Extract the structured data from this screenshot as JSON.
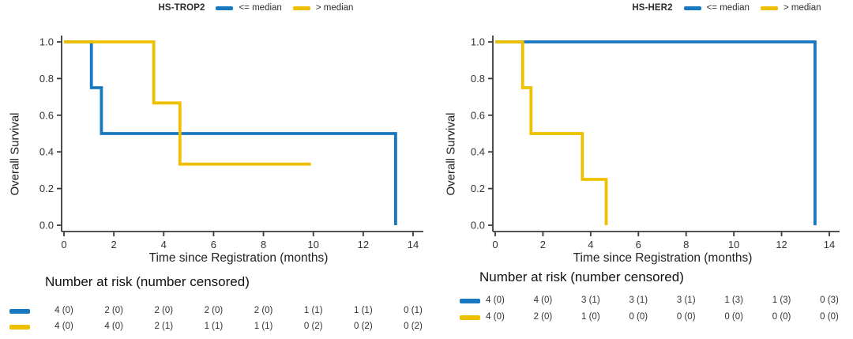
{
  "chart_data": [
    {
      "type": "line",
      "subtype": "kaplan-meier-step",
      "title": "HS-TROP2",
      "xlabel": "Time since Registration (months)",
      "ylabel": "Overall Survival",
      "xlim": [
        0,
        14
      ],
      "ylim": [
        0.0,
        1.0
      ],
      "xticks": [
        "0",
        "2",
        "4",
        "6",
        "8",
        "10",
        "12",
        "14"
      ],
      "yticks": [
        "1.0",
        "0.8",
        "0.6",
        "0.4",
        "0.2",
        "0.0"
      ],
      "ytick_values": [
        1.0,
        0.8,
        0.6,
        0.4,
        0.2,
        0.0
      ],
      "xtick_values": [
        0,
        2,
        4,
        6,
        8,
        10,
        12,
        14
      ],
      "grid": false,
      "legend_position": "top",
      "series": [
        {
          "name": "<= median",
          "color": "#1878C0",
          "points": [
            [
              0,
              1.0
            ],
            [
              1.1,
              1.0
            ],
            [
              1.1,
              0.75
            ],
            [
              1.5,
              0.75
            ],
            [
              1.5,
              0.5
            ],
            [
              13.3,
              0.5
            ],
            [
              13.3,
              0.0
            ]
          ]
        },
        {
          "name": "> median",
          "color": "#EFC000",
          "points": [
            [
              0,
              1.0
            ],
            [
              3.6,
              1.0
            ],
            [
              3.6,
              0.667
            ],
            [
              4.65,
              0.667
            ],
            [
              4.65,
              0.333
            ],
            [
              9.9,
              0.333
            ]
          ]
        }
      ],
      "risk_table": {
        "title": "Number at risk (number censored)",
        "times": [
          0,
          2,
          4,
          6,
          8,
          10,
          12,
          14
        ],
        "rows": [
          {
            "name": "<= median",
            "color": "#1878C0",
            "values": [
              "4 (0)",
              "2 (0)",
              "2 (0)",
              "2 (0)",
              "2 (0)",
              "1 (1)",
              "1 (1)",
              "0 (1)"
            ]
          },
          {
            "name": "> median",
            "color": "#EFC000",
            "values": [
              "4 (0)",
              "4 (0)",
              "2 (1)",
              "1 (1)",
              "1 (1)",
              "0 (2)",
              "0 (2)",
              "0 (2)"
            ]
          }
        ]
      }
    },
    {
      "type": "line",
      "subtype": "kaplan-meier-step",
      "title": "HS-HER2",
      "xlabel": "Time since Registration (months)",
      "ylabel": "Overall Survival",
      "xlim": [
        0,
        14
      ],
      "ylim": [
        0.0,
        1.0
      ],
      "xticks": [
        "0",
        "2",
        "4",
        "6",
        "8",
        "10",
        "12",
        "14"
      ],
      "yticks": [
        "1.0",
        "0.8",
        "0.6",
        "0.4",
        "0.2",
        "0.0"
      ],
      "ytick_values": [
        1.0,
        0.8,
        0.6,
        0.4,
        0.2,
        0.0
      ],
      "xtick_values": [
        0,
        2,
        4,
        6,
        8,
        10,
        12,
        14
      ],
      "grid": false,
      "legend_position": "top",
      "series": [
        {
          "name": "<= median",
          "color": "#1878C0",
          "points": [
            [
              0,
              1.0
            ],
            [
              13.4,
              1.0
            ],
            [
              13.4,
              0.0
            ]
          ]
        },
        {
          "name": "> median",
          "color": "#EFC000",
          "points": [
            [
              0,
              1.0
            ],
            [
              1.15,
              1.0
            ],
            [
              1.15,
              0.75
            ],
            [
              1.5,
              0.75
            ],
            [
              1.5,
              0.5
            ],
            [
              3.65,
              0.5
            ],
            [
              3.65,
              0.25
            ],
            [
              4.65,
              0.25
            ],
            [
              4.65,
              0.0
            ]
          ]
        }
      ],
      "risk_table": {
        "title": "Number at risk (number censored)",
        "times": [
          0,
          2,
          4,
          6,
          8,
          10,
          12,
          14
        ],
        "rows": [
          {
            "name": "<= median",
            "color": "#1878C0",
            "values": [
              "4 (0)",
              "4 (0)",
              "3 (1)",
              "3 (1)",
              "3 (1)",
              "1 (3)",
              "1 (3)",
              "0 (3)"
            ]
          },
          {
            "name": "> median",
            "color": "#EFC000",
            "values": [
              "4 (0)",
              "2 (0)",
              "1 (0)",
              "0 (0)",
              "0 (0)",
              "0 (0)",
              "0 (0)",
              "0 (0)"
            ]
          }
        ]
      }
    }
  ]
}
